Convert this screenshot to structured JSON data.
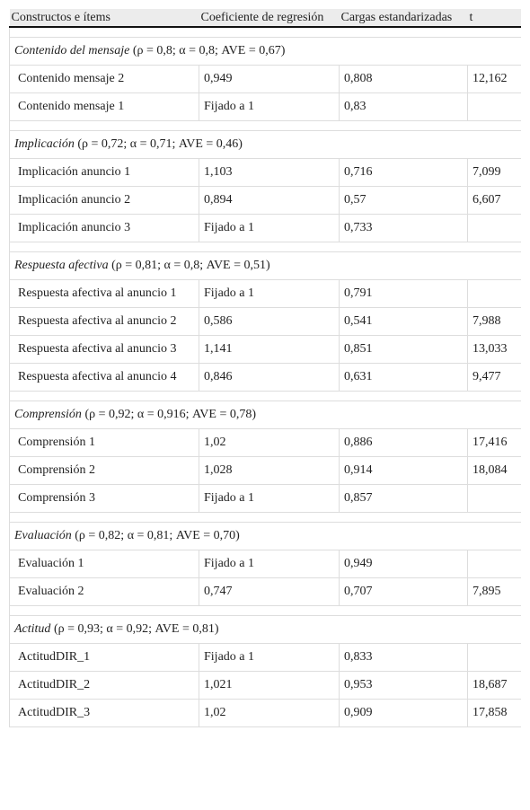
{
  "table": {
    "header": [
      "Constructos e ítems",
      "Coeficiente de regresión",
      "Cargas estandarizadas",
      "t"
    ],
    "sections": [
      {
        "name": "Contenido del mensaje",
        "stats": "(ρ = 0,8; α = 0,8; AVE = 0,67)",
        "rows": [
          [
            "Contenido mensaje 2",
            "0,949",
            "0,808",
            "12,162"
          ],
          [
            "Contenido mensaje 1",
            "Fijado a 1",
            "0,83",
            null
          ]
        ]
      },
      {
        "name": "Implicación",
        "stats": "(ρ = 0,72; α = 0,71; AVE = 0,46)",
        "rows": [
          [
            "Implicación anuncio 1",
            "1,103",
            "0,716",
            "7,099"
          ],
          [
            "Implicación anuncio 2",
            "0,894",
            "0,57",
            "6,607"
          ],
          [
            "Implicación anuncio 3",
            "Fijado a 1",
            "0,733",
            null
          ]
        ]
      },
      {
        "name": "Respuesta afectiva",
        "stats": "(ρ = 0,81; α = 0,8; AVE = 0,51)",
        "rows": [
          [
            "Respuesta afectiva al anuncio 1",
            "Fijado a 1",
            "0,791",
            null
          ],
          [
            "Respuesta afectiva al anuncio 2",
            "0,586",
            "0,541",
            "7,988"
          ],
          [
            "Respuesta afectiva al anuncio 3",
            "1,141",
            "0,851",
            "13,033"
          ],
          [
            "Respuesta afectiva al anuncio 4",
            "0,846",
            "0,631",
            "9,477"
          ]
        ]
      },
      {
        "name": "Comprensión",
        "stats": "(ρ = 0,92; α = 0,916; AVE = 0,78)",
        "rows": [
          [
            "Comprensión 1",
            "1,02",
            "0,886",
            "17,416"
          ],
          [
            "Comprensión 2",
            "1,028",
            "0,914",
            "18,084"
          ],
          [
            "Comprensión 3",
            "Fijado a 1",
            "0,857",
            null
          ]
        ]
      },
      {
        "name": "Evaluación",
        "stats": "(ρ = 0,82; α = 0,81; AVE = 0,70)",
        "rows": [
          [
            "Evaluación 1",
            "Fijado a 1",
            "0,949",
            null
          ],
          [
            "Evaluación 2",
            "0,747",
            "0,707",
            "7,895"
          ]
        ]
      },
      {
        "name": "Actitud",
        "stats": "(ρ = 0,93; α = 0,92; AVE = 0,81)",
        "rows": [
          [
            "ActitudDIR_1",
            "Fijado a 1",
            "0,833",
            null
          ],
          [
            "ActitudDIR_2",
            "1,021",
            "0,953",
            "18,687"
          ],
          [
            "ActitudDIR_3",
            "1,02",
            "0,909",
            "17,858"
          ]
        ]
      }
    ]
  }
}
